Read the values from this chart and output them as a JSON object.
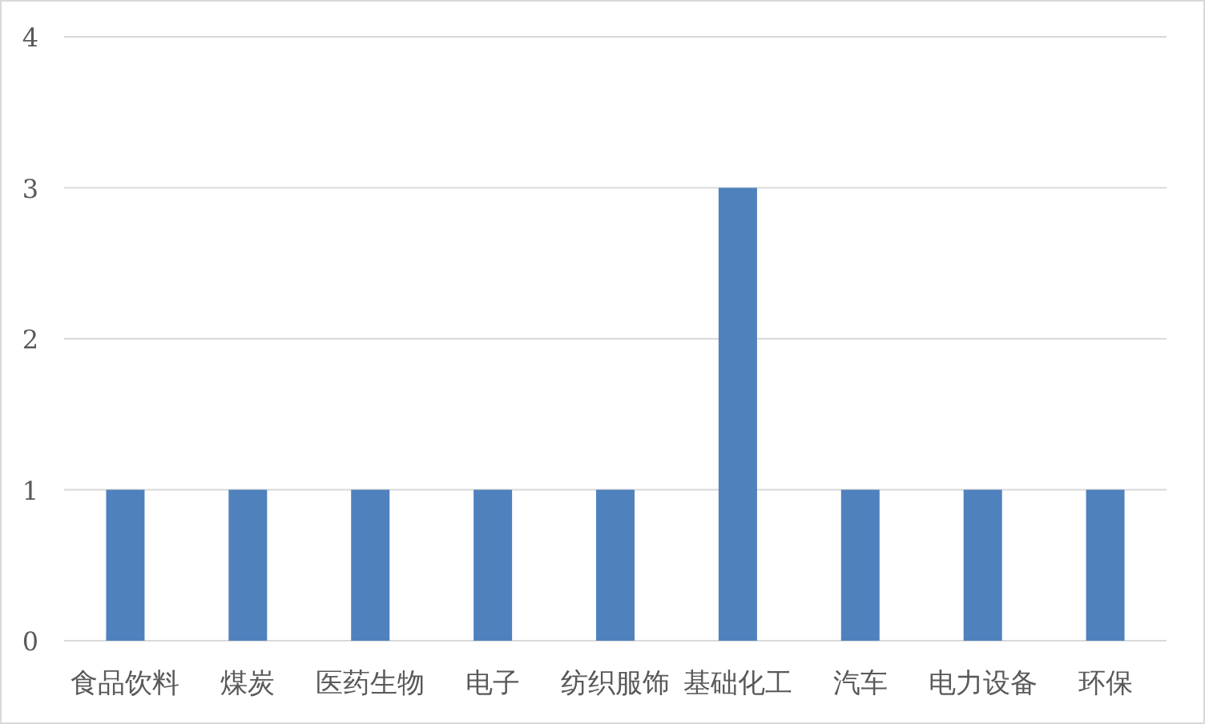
{
  "chart_data": {
    "type": "bar",
    "categories": [
      "食品饮料",
      "煤炭",
      "医药生物",
      "电子",
      "纺织服饰",
      "基础化工",
      "汽车",
      "电力设备",
      "环保"
    ],
    "values": [
      1,
      1,
      1,
      1,
      1,
      3,
      1,
      1,
      1
    ],
    "color": "#4f81bd",
    "ylim": [
      0,
      4
    ],
    "yticks": [
      0,
      1,
      2,
      3,
      4
    ],
    "grid": "y"
  }
}
